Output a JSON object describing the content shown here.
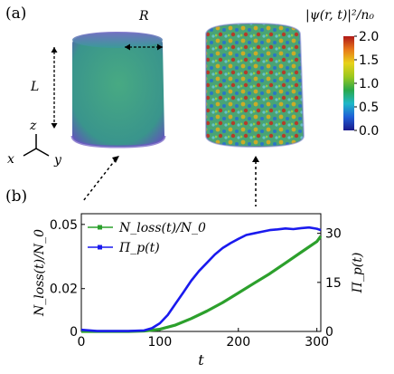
{
  "panel_a": {
    "label": "(a)",
    "dim_radius": "R",
    "dim_length": "L",
    "axis_z": "z",
    "axis_x": "x",
    "axis_y": "y",
    "colorbar": {
      "title": "|ψ(r, t)|²/n₀",
      "ticks": [
        "2.0",
        "1.5",
        "1.0",
        "0.5",
        "0.0"
      ],
      "tick_values": [
        2.0,
        1.5,
        1.0,
        0.5,
        0.0
      ],
      "range": [
        0.0,
        2.0
      ],
      "colors": [
        "#1a1a8c",
        "#1f5fd6",
        "#1fb8c8",
        "#2aa84a",
        "#9cc81e",
        "#e8d21a",
        "#e8791a",
        "#b01818"
      ]
    },
    "render_colors": {
      "initial_fill": "#2f9a7a",
      "initial_rim": "#6a4fb8",
      "turbulent_fill": "#3fa66a"
    }
  },
  "panel_b": {
    "label": "(b)",
    "chart_data": {
      "type": "line",
      "xlabel": "t",
      "ylabel_left": "N_loss(t)/N_0",
      "ylabel_right": "Π_p(t)",
      "xlim": [
        0,
        305
      ],
      "ylim_left": [
        0,
        0.055
      ],
      "ylim_right": [
        0,
        36
      ],
      "x_ticks": [
        0,
        100,
        200,
        300
      ],
      "x_tick_labels": [
        "0",
        "100",
        "200",
        "300"
      ],
      "y_left_ticks": [
        0,
        0.02,
        0.05
      ],
      "y_left_tick_labels": [
        "0",
        "0.02",
        "0.05"
      ],
      "y_right_ticks": [
        0,
        15,
        30
      ],
      "y_right_tick_labels": [
        "0",
        "15",
        "30"
      ],
      "legend_placement": "top-left",
      "series": [
        {
          "name": "N_loss(t)/N_0",
          "axis": "left",
          "color": "#2ca02c",
          "x": [
            0,
            20,
            40,
            60,
            80,
            100,
            120,
            140,
            160,
            180,
            200,
            220,
            240,
            260,
            280,
            300,
            305
          ],
          "y": [
            0,
            0,
            0,
            0,
            0.0002,
            0.001,
            0.003,
            0.006,
            0.0095,
            0.0135,
            0.018,
            0.0225,
            0.027,
            0.032,
            0.037,
            0.042,
            0.0445
          ]
        },
        {
          "name": "Π_p(t)",
          "axis": "right",
          "color": "#1a1aee",
          "x": [
            0,
            20,
            40,
            60,
            80,
            90,
            100,
            110,
            120,
            130,
            140,
            150,
            160,
            170,
            180,
            190,
            200,
            210,
            220,
            230,
            240,
            250,
            260,
            270,
            280,
            290,
            300,
            305
          ],
          "y": [
            0.5,
            0.1,
            0.1,
            0.1,
            0.3,
            1.0,
            2.5,
            5.0,
            8.5,
            12.0,
            15.5,
            18.5,
            21.0,
            23.5,
            25.5,
            27.0,
            28.3,
            29.5,
            30.0,
            30.5,
            31.0,
            31.2,
            31.5,
            31.3,
            31.6,
            31.8,
            31.4,
            31.0
          ]
        }
      ]
    }
  }
}
